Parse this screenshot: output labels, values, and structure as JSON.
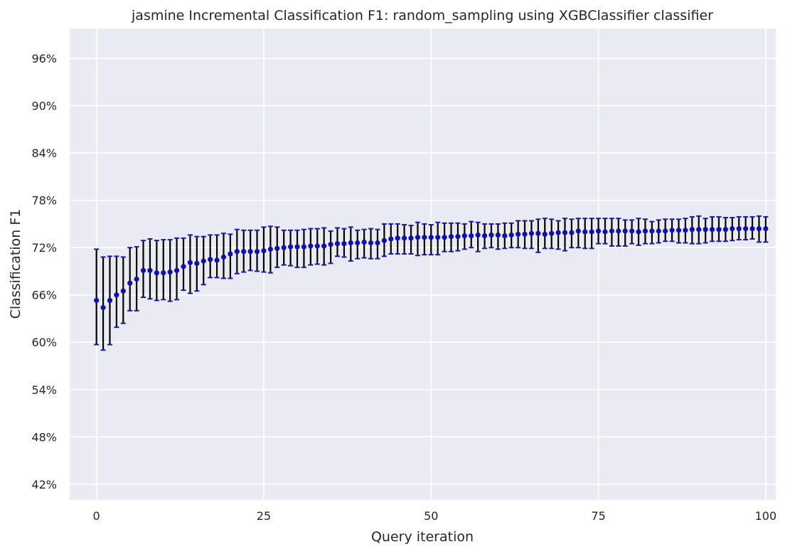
{
  "chart_data": {
    "type": "scatter",
    "title": "jasmine Incremental Classification F1: random_sampling using XGBClassifier classifier",
    "xlabel": "Query iteration",
    "ylabel": "Classification F1",
    "xlim": [
      -4,
      101.5
    ],
    "ylim": [
      0.4,
      0.9979
    ],
    "xticks": [
      0,
      25,
      50,
      75,
      100
    ],
    "xtick_labels": [
      "0",
      "25",
      "50",
      "75",
      "100"
    ],
    "yticks": [
      0.42,
      0.48,
      0.54,
      0.6,
      0.66,
      0.72,
      0.78,
      0.84,
      0.9,
      0.96
    ],
    "ytick_labels": [
      "42%",
      "48%",
      "54%",
      "60%",
      "66%",
      "72%",
      "78%",
      "84%",
      "90%",
      "96%"
    ],
    "grid": true,
    "colors": {
      "background": "#eaeaf2",
      "grid": "#ffffff",
      "marker": "#1010b0",
      "errorbar": "#000000",
      "cap": "#1a1aa8"
    },
    "series": [
      {
        "x": [
          0,
          1,
          2,
          3,
          4,
          5,
          6,
          7,
          8,
          9,
          10,
          11,
          12,
          13,
          14,
          15,
          16,
          17,
          18,
          19,
          20,
          21,
          22,
          23,
          24,
          25,
          26,
          27,
          28,
          29,
          30,
          31,
          32,
          33,
          34,
          35,
          36,
          37,
          38,
          39,
          40,
          41,
          42,
          43,
          44,
          45,
          46,
          47,
          48,
          49,
          50,
          51,
          52,
          53,
          54,
          55,
          56,
          57,
          58,
          59,
          60,
          61,
          62,
          63,
          64,
          65,
          66,
          67,
          68,
          69,
          70,
          71,
          72,
          73,
          74,
          75,
          76,
          77,
          78,
          79,
          80,
          81,
          82,
          83,
          84,
          85,
          86,
          87,
          88,
          89,
          90,
          91,
          92,
          93,
          94,
          95,
          96,
          97,
          98,
          99,
          100
        ],
        "y": [
          0.653,
          0.644,
          0.653,
          0.66,
          0.665,
          0.675,
          0.68,
          0.691,
          0.691,
          0.688,
          0.688,
          0.689,
          0.691,
          0.696,
          0.701,
          0.7,
          0.703,
          0.705,
          0.704,
          0.708,
          0.712,
          0.715,
          0.715,
          0.715,
          0.715,
          0.716,
          0.718,
          0.719,
          0.72,
          0.721,
          0.721,
          0.721,
          0.722,
          0.722,
          0.722,
          0.724,
          0.725,
          0.725,
          0.726,
          0.726,
          0.727,
          0.726,
          0.726,
          0.729,
          0.731,
          0.732,
          0.732,
          0.732,
          0.733,
          0.733,
          0.733,
          0.733,
          0.733,
          0.734,
          0.734,
          0.735,
          0.735,
          0.736,
          0.735,
          0.736,
          0.736,
          0.735,
          0.736,
          0.737,
          0.737,
          0.738,
          0.738,
          0.737,
          0.738,
          0.739,
          0.739,
          0.739,
          0.741,
          0.74,
          0.74,
          0.741,
          0.74,
          0.741,
          0.741,
          0.741,
          0.741,
          0.74,
          0.741,
          0.741,
          0.741,
          0.741,
          0.742,
          0.742,
          0.742,
          0.743,
          0.743,
          0.743,
          0.743,
          0.743,
          0.743,
          0.744,
          0.744,
          0.744,
          0.744,
          0.744,
          0.744
        ],
        "err_low": [
          0.597,
          0.59,
          0.597,
          0.619,
          0.624,
          0.64,
          0.64,
          0.657,
          0.655,
          0.653,
          0.654,
          0.652,
          0.654,
          0.666,
          0.662,
          0.665,
          0.673,
          0.682,
          0.682,
          0.681,
          0.681,
          0.687,
          0.689,
          0.691,
          0.69,
          0.689,
          0.688,
          0.695,
          0.698,
          0.697,
          0.695,
          0.695,
          0.698,
          0.699,
          0.698,
          0.7,
          0.709,
          0.708,
          0.703,
          0.706,
          0.707,
          0.706,
          0.706,
          0.709,
          0.712,
          0.712,
          0.712,
          0.712,
          0.71,
          0.711,
          0.711,
          0.711,
          0.715,
          0.715,
          0.716,
          0.718,
          0.72,
          0.715,
          0.719,
          0.72,
          0.718,
          0.719,
          0.72,
          0.72,
          0.719,
          0.719,
          0.714,
          0.719,
          0.719,
          0.718,
          0.716,
          0.72,
          0.72,
          0.719,
          0.719,
          0.725,
          0.725,
          0.722,
          0.722,
          0.722,
          0.725,
          0.723,
          0.725,
          0.725,
          0.726,
          0.728,
          0.728,
          0.726,
          0.726,
          0.725,
          0.725,
          0.726,
          0.728,
          0.728,
          0.728,
          0.729,
          0.73,
          0.73,
          0.731,
          0.727,
          0.727
        ],
        "err_high": [
          0.718,
          0.708,
          0.709,
          0.709,
          0.708,
          0.72,
          0.721,
          0.729,
          0.731,
          0.729,
          0.73,
          0.73,
          0.732,
          0.732,
          0.736,
          0.734,
          0.734,
          0.736,
          0.736,
          0.738,
          0.737,
          0.743,
          0.742,
          0.742,
          0.742,
          0.746,
          0.747,
          0.746,
          0.742,
          0.742,
          0.742,
          0.743,
          0.744,
          0.744,
          0.745,
          0.741,
          0.745,
          0.744,
          0.746,
          0.742,
          0.743,
          0.744,
          0.743,
          0.75,
          0.75,
          0.75,
          0.749,
          0.748,
          0.752,
          0.75,
          0.749,
          0.752,
          0.751,
          0.751,
          0.751,
          0.75,
          0.753,
          0.752,
          0.75,
          0.75,
          0.75,
          0.751,
          0.751,
          0.754,
          0.754,
          0.754,
          0.756,
          0.757,
          0.756,
          0.754,
          0.757,
          0.756,
          0.757,
          0.757,
          0.757,
          0.757,
          0.757,
          0.757,
          0.757,
          0.755,
          0.755,
          0.757,
          0.756,
          0.753,
          0.755,
          0.756,
          0.756,
          0.756,
          0.757,
          0.759,
          0.76,
          0.757,
          0.759,
          0.759,
          0.758,
          0.758,
          0.759,
          0.759,
          0.759,
          0.76,
          0.759
        ]
      }
    ]
  }
}
